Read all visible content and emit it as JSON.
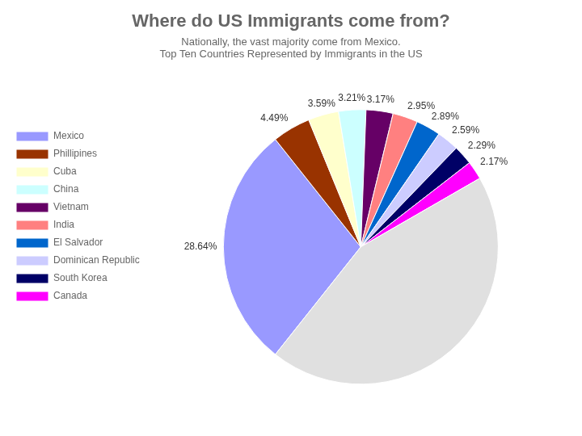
{
  "chart_data": {
    "type": "pie",
    "title": "Where do US Immigrants come from?",
    "subtitle": "Nationally, the vast majority come from Mexico.",
    "annotations": [
      "Top Ten Countries Represented by Immigrants in the US"
    ],
    "categories": [
      "Mexico",
      "Phillipines",
      "Cuba",
      "China",
      "Vietnam",
      "India",
      "El Salvador",
      "Dominican Republic",
      "South Korea",
      "Canada",
      null
    ],
    "values": [
      28.64,
      4.49,
      3.59,
      3.21,
      3.17,
      2.95,
      2.89,
      2.59,
      2.29,
      2.17,
      44.01
    ],
    "value_labels": [
      "28.64%",
      "4.49%",
      "3.59%",
      "3.21%",
      "3.17%",
      "2.95%",
      "2.89%",
      "2.59%",
      "2.29%",
      "2.17%",
      null
    ],
    "colors": [
      "#9999FF",
      "#993300",
      "#FFFFCC",
      "#CCFFFF",
      "#660066",
      "#FF8080",
      "#0066CC",
      "#CCCCFF",
      "#000066",
      "#FF00FF",
      "#E0E0E0"
    ],
    "data_labels": true,
    "legend": "left"
  }
}
